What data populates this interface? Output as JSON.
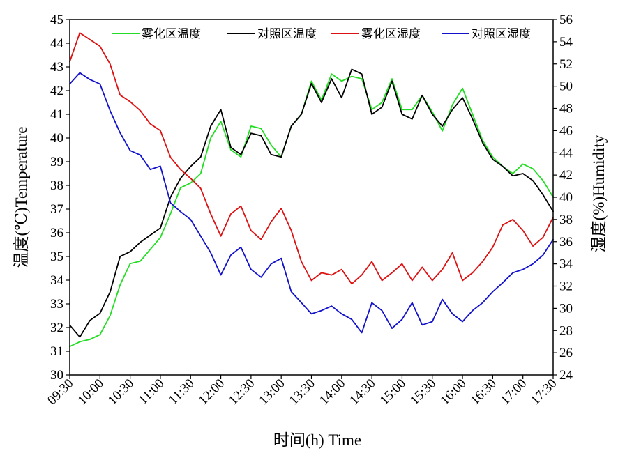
{
  "chart_data": {
    "type": "line",
    "xlabel": "时间(h) Time",
    "ylabel_left": "温度(℃)Temperature",
    "ylabel_right": "湿度(%)Humidity",
    "y_left_lim": [
      30,
      45
    ],
    "y_right_lim": [
      24,
      56
    ],
    "x_ticks": [
      "09:30",
      "10:00",
      "10:30",
      "11:00",
      "11:30",
      "12:00",
      "12:30",
      "13:00",
      "13:30",
      "14:00",
      "14:30",
      "15:00",
      "15:30",
      "16:00",
      "16:30",
      "17:00",
      "17:30"
    ],
    "y_left_ticks": [
      30,
      31,
      32,
      33,
      34,
      35,
      36,
      37,
      38,
      39,
      40,
      41,
      42,
      43,
      44,
      45
    ],
    "y_right_ticks": [
      24,
      26,
      28,
      30,
      32,
      34,
      36,
      38,
      40,
      42,
      44,
      46,
      48,
      50,
      52,
      54,
      56
    ],
    "legend_position": "top",
    "grid": false,
    "series": [
      {
        "name": "雾化区温度",
        "axis": "left",
        "color": "#22dd22",
        "x": [
          "09:30",
          "09:40",
          "09:50",
          "10:00",
          "10:10",
          "10:20",
          "10:30",
          "10:40",
          "10:50",
          "11:00",
          "11:10",
          "11:20",
          "11:30",
          "11:40",
          "11:50",
          "12:00",
          "12:10",
          "12:20",
          "12:30",
          "12:40",
          "12:50",
          "13:00",
          "13:10",
          "13:20",
          "13:30",
          "13:40",
          "13:50",
          "14:00",
          "14:10",
          "14:20",
          "14:30",
          "14:40",
          "14:50",
          "15:00",
          "15:10",
          "15:20",
          "15:30",
          "15:40",
          "15:50",
          "16:00",
          "16:10",
          "16:20",
          "16:30",
          "16:40",
          "16:50",
          "17:00",
          "17:10",
          "17:20",
          "17:30"
        ],
        "values": [
          31.2,
          31.4,
          31.5,
          31.7,
          32.5,
          33.8,
          34.7,
          34.8,
          35.3,
          35.8,
          36.8,
          37.9,
          38.1,
          38.5,
          40.0,
          40.7,
          39.5,
          39.2,
          40.5,
          40.4,
          39.7,
          39.2,
          40.5,
          41.0,
          42.4,
          41.6,
          42.7,
          42.4,
          42.6,
          42.5,
          41.2,
          41.5,
          42.5,
          41.2,
          41.2,
          41.8,
          41.1,
          40.3,
          41.4,
          42.1,
          41.0,
          39.9,
          39.2,
          38.8,
          38.5,
          38.9,
          38.7,
          38.2,
          37.5
        ]
      },
      {
        "name": "对照区温度",
        "axis": "left",
        "color": "#000000",
        "x": [
          "09:30",
          "09:40",
          "09:50",
          "10:00",
          "10:10",
          "10:20",
          "10:30",
          "10:40",
          "10:50",
          "11:00",
          "11:10",
          "11:20",
          "11:30",
          "11:40",
          "11:50",
          "12:00",
          "12:10",
          "12:20",
          "12:30",
          "12:40",
          "12:50",
          "13:00",
          "13:10",
          "13:20",
          "13:30",
          "13:40",
          "13:50",
          "14:00",
          "14:10",
          "14:20",
          "14:30",
          "14:40",
          "14:50",
          "15:00",
          "15:10",
          "15:20",
          "15:30",
          "15:40",
          "15:50",
          "16:00",
          "16:10",
          "16:20",
          "16:30",
          "16:40",
          "16:50",
          "17:00",
          "17:10",
          "17:20",
          "17:30"
        ],
        "values": [
          32.1,
          31.6,
          32.3,
          32.6,
          33.5,
          35.0,
          35.2,
          35.6,
          35.9,
          36.2,
          37.5,
          38.3,
          38.8,
          39.2,
          40.5,
          41.2,
          39.6,
          39.3,
          40.2,
          40.1,
          39.3,
          39.2,
          40.5,
          41.0,
          42.3,
          41.5,
          42.5,
          41.7,
          42.9,
          42.7,
          41.0,
          41.3,
          42.4,
          41.0,
          40.8,
          41.8,
          41.0,
          40.5,
          41.2,
          41.7,
          40.8,
          39.8,
          39.1,
          38.8,
          38.4,
          38.5,
          38.2,
          37.6,
          36.9
        ]
      },
      {
        "name": "雾化区湿度",
        "axis": "right",
        "color": "#dd1111",
        "x": [
          "09:30",
          "09:40",
          "09:50",
          "10:00",
          "10:10",
          "10:20",
          "10:30",
          "10:40",
          "10:50",
          "11:00",
          "11:10",
          "11:20",
          "11:30",
          "11:40",
          "11:50",
          "12:00",
          "12:10",
          "12:20",
          "12:30",
          "12:40",
          "12:50",
          "13:00",
          "13:10",
          "13:20",
          "13:30",
          "13:40",
          "13:50",
          "14:00",
          "14:10",
          "14:20",
          "14:30",
          "14:40",
          "14:50",
          "15:00",
          "15:10",
          "15:20",
          "15:30",
          "15:40",
          "15:50",
          "16:00",
          "16:10",
          "16:20",
          "16:30",
          "16:40",
          "16:50",
          "17:00",
          "17:10",
          "17:20",
          "17:30"
        ],
        "values": [
          52.2,
          54.8,
          54.2,
          53.6,
          52.0,
          49.2,
          48.6,
          47.8,
          46.6,
          46.0,
          43.6,
          42.5,
          41.7,
          40.8,
          38.5,
          36.5,
          38.5,
          39.2,
          37.0,
          36.2,
          37.8,
          39.0,
          37.0,
          34.2,
          32.5,
          33.2,
          33.0,
          33.5,
          32.2,
          33.0,
          34.2,
          32.5,
          33.2,
          34.0,
          32.5,
          33.7,
          32.5,
          33.5,
          35.0,
          32.5,
          33.2,
          34.2,
          35.5,
          37.5,
          38.0,
          37.0,
          35.6,
          36.4,
          38.2
        ]
      },
      {
        "name": "对照区湿度",
        "axis": "right",
        "color": "#1111cc",
        "x": [
          "09:30",
          "09:40",
          "09:50",
          "10:00",
          "10:10",
          "10:20",
          "10:30",
          "10:40",
          "10:50",
          "11:00",
          "11:10",
          "11:20",
          "11:30",
          "11:40",
          "11:50",
          "12:00",
          "12:10",
          "12:20",
          "12:30",
          "12:40",
          "12:50",
          "13:00",
          "13:10",
          "13:20",
          "13:30",
          "13:40",
          "13:50",
          "14:00",
          "14:10",
          "14:20",
          "14:30",
          "14:40",
          "14:50",
          "15:00",
          "15:10",
          "15:20",
          "15:30",
          "15:40",
          "15:50",
          "16:00",
          "16:10",
          "16:20",
          "16:30",
          "16:40",
          "16:50",
          "17:00",
          "17:10",
          "17:20",
          "17:30"
        ],
        "values": [
          50.2,
          51.2,
          50.6,
          50.2,
          47.8,
          45.8,
          44.2,
          43.8,
          42.5,
          42.8,
          39.5,
          38.7,
          38.0,
          36.5,
          35.0,
          33.0,
          34.8,
          35.5,
          33.5,
          32.8,
          34.0,
          34.5,
          31.5,
          30.5,
          29.5,
          29.8,
          30.2,
          29.5,
          29.0,
          27.8,
          30.5,
          29.8,
          28.2,
          29.0,
          30.5,
          28.5,
          28.8,
          30.8,
          29.5,
          28.8,
          29.8,
          30.5,
          31.5,
          32.3,
          33.2,
          33.5,
          34.0,
          34.8,
          36.2
        ]
      }
    ]
  }
}
